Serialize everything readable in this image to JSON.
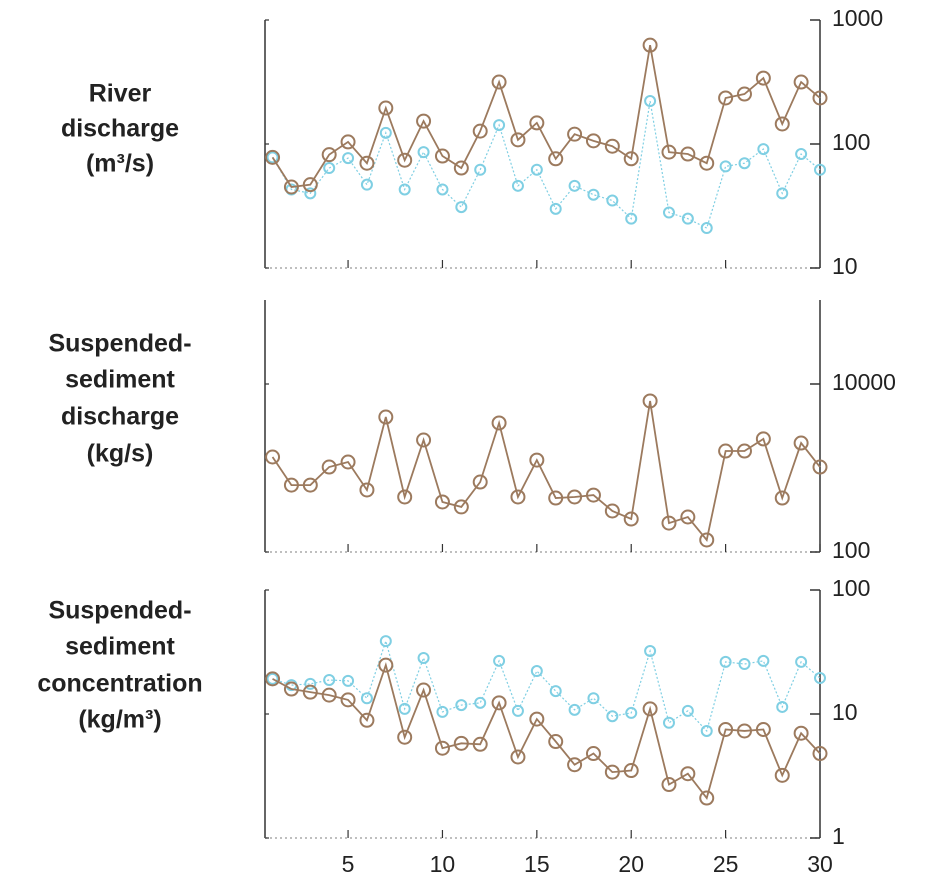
{
  "chart_data": [
    {
      "type": "line",
      "ylabel": [
        "River",
        "discharge",
        "(m³/s)"
      ],
      "log_y": true,
      "x": [
        1,
        2,
        3,
        4,
        5,
        6,
        7,
        8,
        9,
        10,
        11,
        12,
        13,
        14,
        15,
        16,
        17,
        18,
        19,
        20,
        21,
        22,
        23,
        24,
        25,
        26,
        27,
        28,
        29,
        30
      ],
      "xlim": [
        0.6,
        30
      ],
      "ylim": [
        10,
        1000
      ],
      "yticks": [
        10,
        100,
        1000
      ],
      "series": [
        {
          "color": "#7fcfe3",
          "values": [
            78,
            43,
            40,
            64,
            77,
            47,
            123,
            43,
            86,
            43,
            31,
            62,
            142,
            46,
            62,
            30,
            46,
            39,
            35,
            25,
            222,
            28,
            25,
            21,
            66,
            70,
            91,
            40,
            83,
            62
          ]
        },
        {
          "color": "#9c7a5e",
          "values": [
            78,
            45,
            47,
            82,
            104,
            70,
            195,
            74,
            153,
            80,
            64,
            127,
            316,
            108,
            148,
            76,
            120,
            106,
            96,
            76,
            627,
            86,
            83,
            70,
            235,
            253,
            340,
            145,
            316,
            235
          ]
        }
      ]
    },
    {
      "type": "line",
      "ylabel": [
        "Suspended-",
        "sediment",
        "discharge",
        "(kg/s)"
      ],
      "log_y": true,
      "x": [
        1,
        2,
        3,
        4,
        5,
        6,
        7,
        8,
        9,
        10,
        11,
        12,
        13,
        14,
        15,
        16,
        17,
        18,
        19,
        20,
        21,
        22,
        23,
        24,
        25,
        26,
        27,
        28,
        29,
        30
      ],
      "xlim": [
        0.6,
        30
      ],
      "ylim": [
        100,
        100000
      ],
      "yticks": [
        100,
        10000
      ],
      "series": [
        {
          "color": "#9c7a5e",
          "values": [
            1352,
            626,
            626,
            1027,
            1179,
            548,
            4045,
            452,
            2154,
            394,
            344,
            681,
            3436,
            452,
            1242,
            439,
            452,
            476,
            308,
            247,
            6280,
            221,
            261,
            139,
            1592,
            1592,
            2219,
            439,
            1983,
            1027
          ]
        }
      ]
    },
    {
      "type": "line",
      "ylabel": [
        "Suspended-",
        "sediment",
        "concentration",
        "(kg/m³)"
      ],
      "log_y": true,
      "x": [
        1,
        2,
        3,
        4,
        5,
        6,
        7,
        8,
        9,
        10,
        11,
        12,
        13,
        14,
        15,
        16,
        17,
        18,
        19,
        20,
        21,
        22,
        23,
        24,
        25,
        26,
        27,
        28,
        29,
        30
      ],
      "xlim": [
        0.6,
        30
      ],
      "ylim": [
        1,
        100
      ],
      "yticks": [
        1,
        10,
        100
      ],
      "xticks": [
        5,
        10,
        15,
        20,
        25,
        30
      ],
      "series": [
        {
          "color": "#7fcfe3",
          "values": [
            19.2,
            17.1,
            17.5,
            18.8,
            18.5,
            13.4,
            38.7,
            11.0,
            28.3,
            10.4,
            11.8,
            12.3,
            26.8,
            10.6,
            22.2,
            15.3,
            10.8,
            13.4,
            9.6,
            10.2,
            32.2,
            8.5,
            10.6,
            7.3,
            26.3,
            25.3,
            26.8,
            11.4,
            26.3,
            19.5
          ]
        },
        {
          "color": "#9c7a5e",
          "values": [
            19.2,
            15.9,
            15.0,
            14.2,
            13.0,
            8.9,
            24.8,
            6.5,
            15.6,
            5.3,
            5.8,
            5.7,
            12.3,
            4.5,
            9.1,
            6.0,
            3.9,
            4.8,
            3.4,
            3.5,
            11.0,
            2.7,
            3.3,
            2.1,
            7.5,
            7.3,
            7.5,
            3.2,
            7.0,
            4.8
          ]
        }
      ]
    }
  ]
}
